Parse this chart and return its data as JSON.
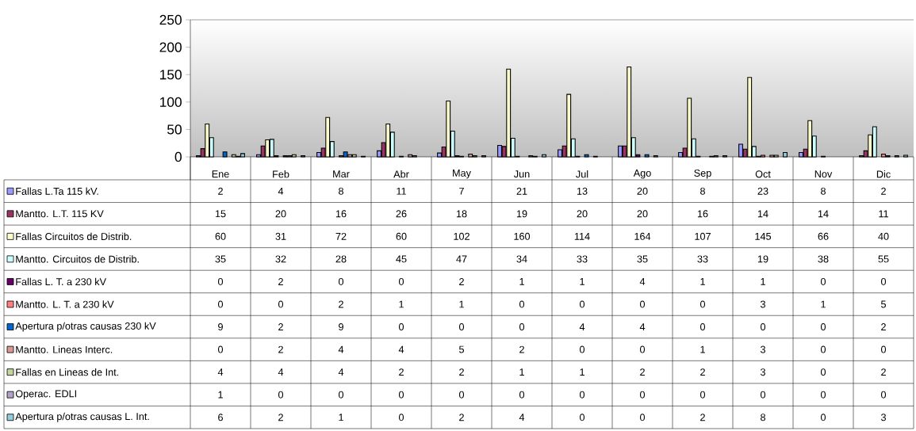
{
  "chart_data": {
    "type": "bar",
    "categories": [
      "Ene",
      "Feb",
      "Mar",
      "Abr",
      "May",
      "Jun",
      "Jul",
      "Ago",
      "Sep",
      "Oct",
      "Nov",
      "Dic"
    ],
    "ylim": [
      0,
      250
    ],
    "yticks": [
      0,
      50,
      100,
      150,
      200,
      250
    ],
    "data_labels": true,
    "legend": "bottom",
    "series": [
      {
        "name": "Fallas L.Ta 115 kV.",
        "color": "#9999ff",
        "values": [
          2,
          4,
          8,
          11,
          7,
          21,
          13,
          20,
          8,
          23,
          8,
          2
        ]
      },
      {
        "name": "Mantto. L.T. 115 KV",
        "color": "#993366",
        "values": [
          15,
          20,
          16,
          26,
          18,
          19,
          20,
          20,
          16,
          14,
          14,
          11
        ]
      },
      {
        "name": "Fallas Circuitos de Distrib.",
        "color": "#ffffcc",
        "values": [
          60,
          31,
          72,
          60,
          102,
          160,
          114,
          164,
          107,
          145,
          66,
          40
        ]
      },
      {
        "name": "Mantto. Circuitos de Distrib.",
        "color": "#ccffff",
        "values": [
          35,
          32,
          28,
          45,
          47,
          34,
          33,
          35,
          33,
          19,
          38,
          55
        ]
      },
      {
        "name": "Fallas L. T. a 230 kV",
        "color": "#660066",
        "values": [
          0,
          2,
          0,
          0,
          2,
          1,
          1,
          4,
          1,
          1,
          0,
          0
        ]
      },
      {
        "name": "Mantto. L. T. a 230 kV",
        "color": "#ff8080",
        "values": [
          0,
          0,
          2,
          1,
          1,
          0,
          0,
          0,
          0,
          3,
          1,
          5
        ]
      },
      {
        "name": "Apertura p/otras causas 230 kV",
        "color": "#0066cc",
        "values": [
          9,
          2,
          9,
          0,
          0,
          0,
          4,
          4,
          0,
          0,
          0,
          2
        ]
      },
      {
        "name": "Mantto. Lineas Interc.",
        "color": "#d99795",
        "values": [
          0,
          2,
          4,
          4,
          5,
          2,
          0,
          0,
          1,
          3,
          0,
          0
        ]
      },
      {
        "name": "Fallas en Lineas de Int.",
        "color": "#c3d69b",
        "values": [
          4,
          4,
          4,
          2,
          2,
          1,
          1,
          2,
          2,
          3,
          0,
          2
        ]
      },
      {
        "name": "Operac. EDLI",
        "color": "#b3a2c7",
        "values": [
          1,
          0,
          0,
          0,
          0,
          0,
          0,
          0,
          0,
          0,
          0,
          0
        ]
      },
      {
        "name": "Apertura p/otras causas L. Int.",
        "color": "#93cddd",
        "values": [
          6,
          2,
          1,
          0,
          2,
          4,
          0,
          0,
          2,
          8,
          0,
          3
        ]
      }
    ]
  }
}
